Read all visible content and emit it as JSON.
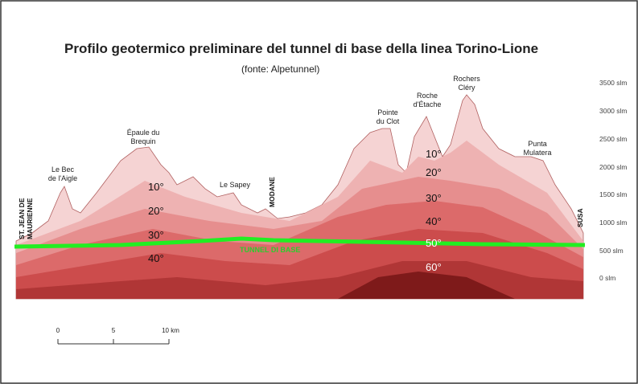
{
  "header": {
    "title": "Profilo geotermico preliminare del tunnel di base della linea Torino-Lione",
    "subtitle": "(fonte: Alpetunnel)"
  },
  "peaks": [
    "Le Bec",
    "de l'Aigle",
    "Épaule du",
    "Brequin",
    "Le Sapey",
    "Pointe",
    "du Clot",
    "Roche",
    "d'Étache",
    "Rochers",
    "Cléry",
    "Punta",
    "Mulatera"
  ],
  "isotherms": [
    "10°",
    "20°",
    "30°",
    "40°",
    "10°",
    "20°",
    "30°",
    "40°",
    "50°",
    "60°"
  ],
  "elevations": [
    "3500 slm",
    "3000 slm",
    "2500 slm",
    "2000 slm",
    "1500 slm",
    "1000 slm",
    "500 slm",
    "0 slm"
  ],
  "places": [
    "ST. JEAN DE",
    "MAURIENNE",
    "MODANE",
    "SUSA"
  ],
  "tunnel_label": "TUNNEL DI BASE",
  "scale": [
    "0",
    "5",
    "10 km"
  ]
}
